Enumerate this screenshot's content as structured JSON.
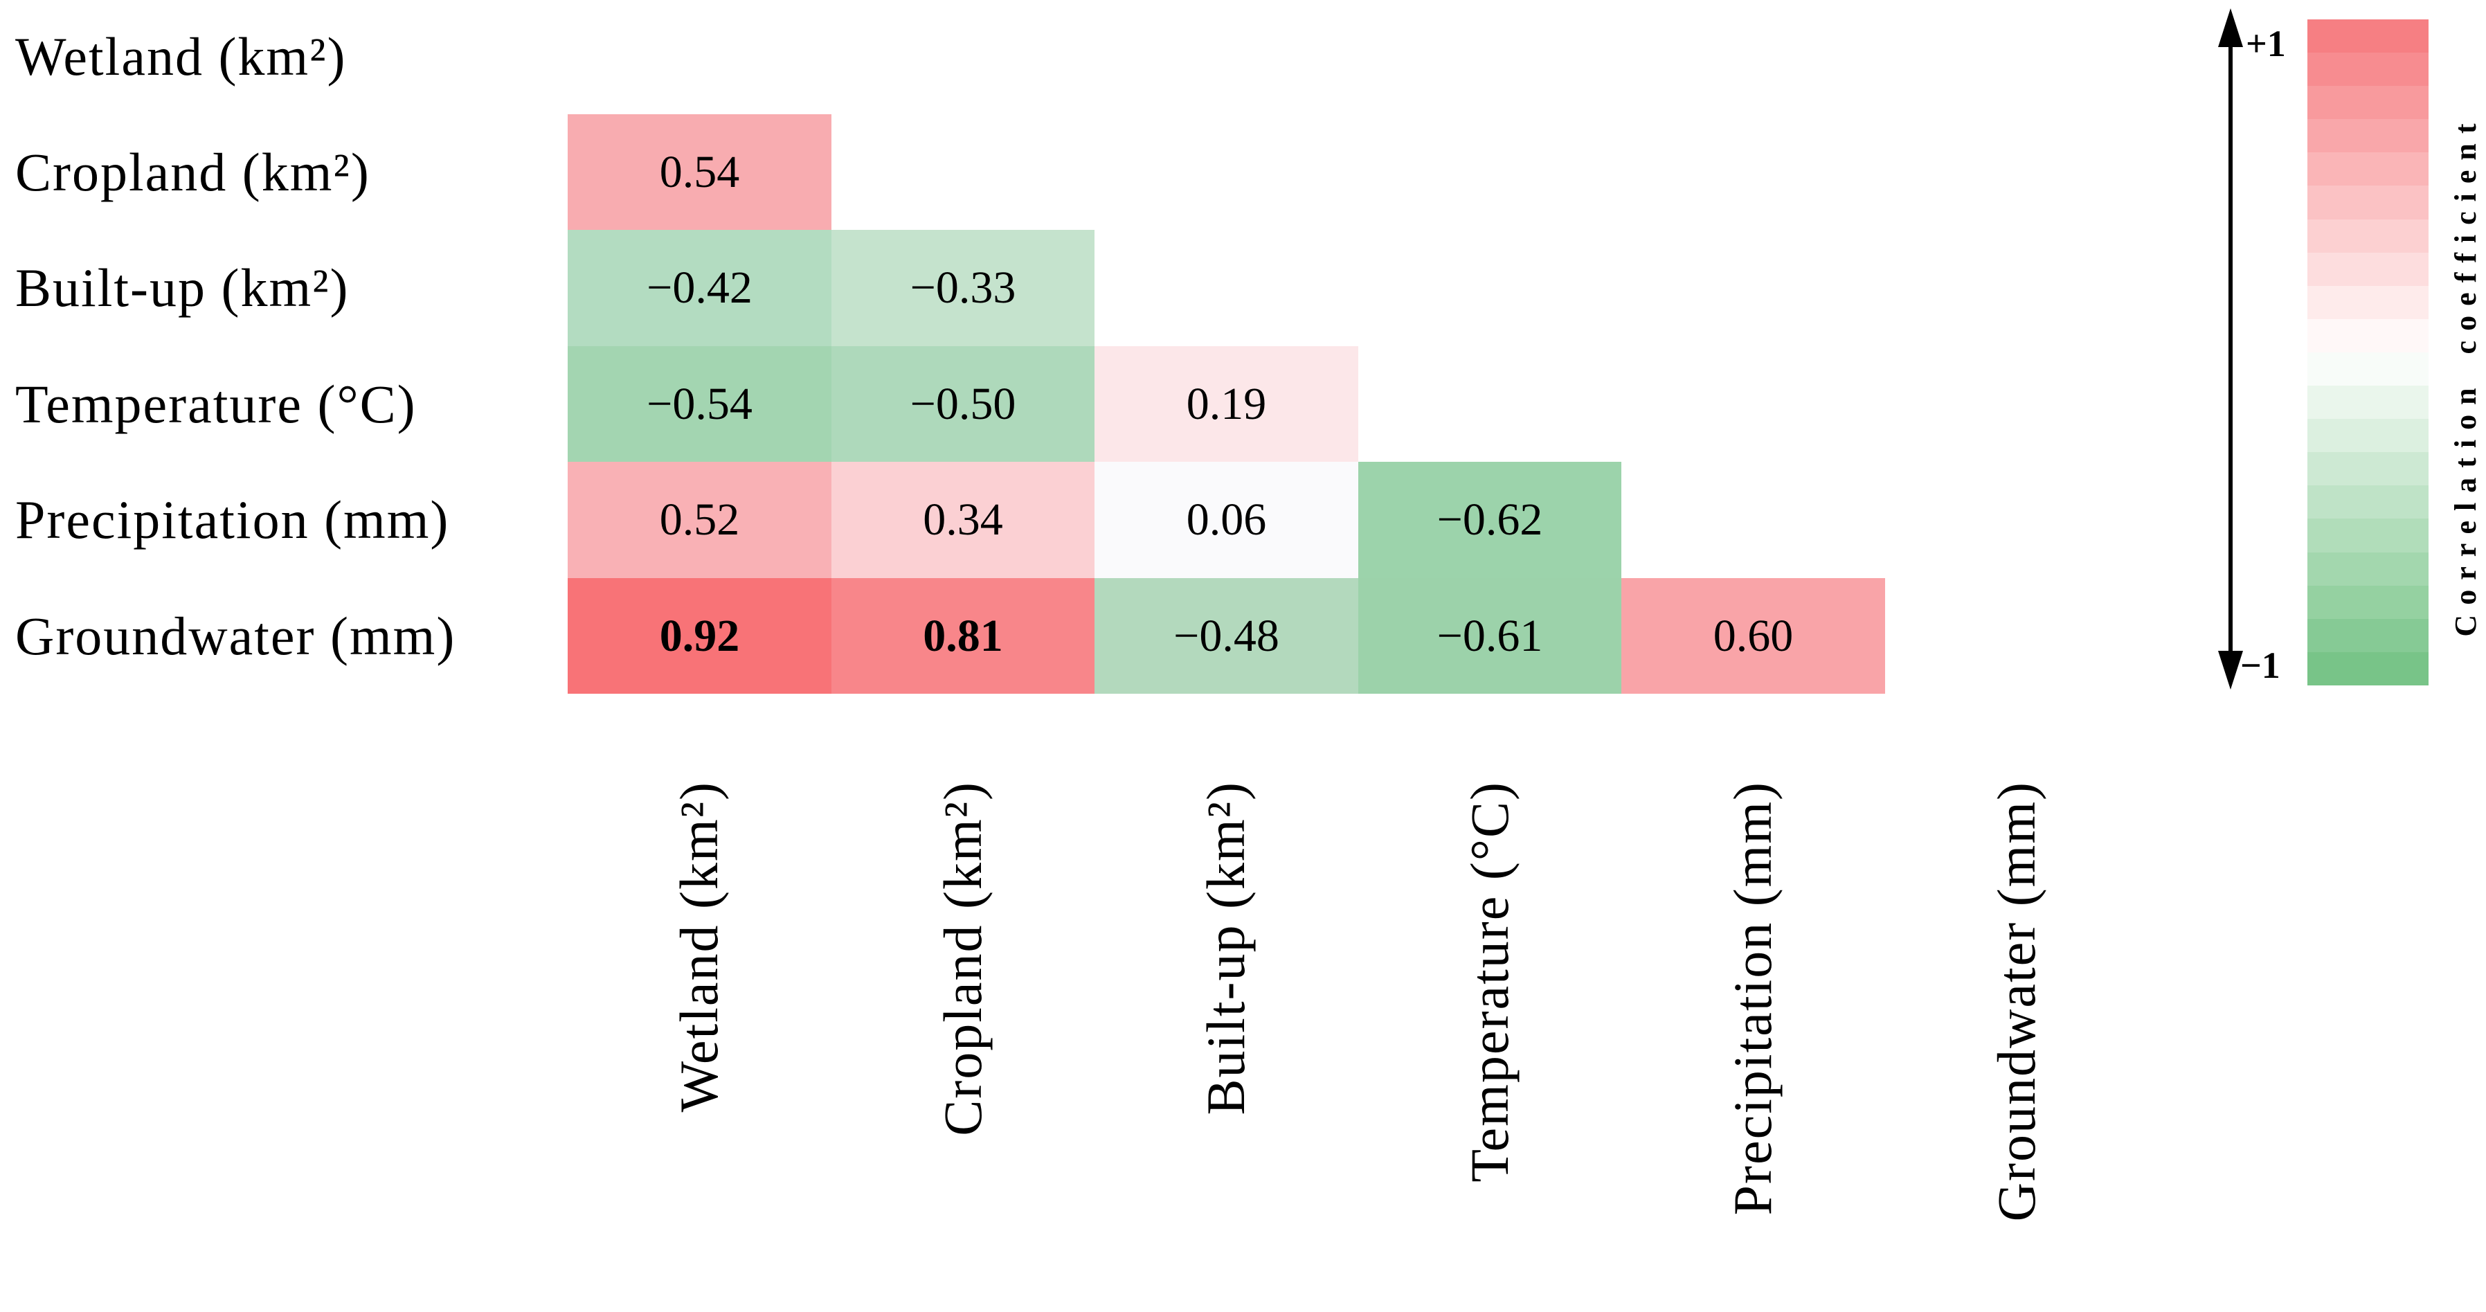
{
  "page": {
    "background": "#ffffff"
  },
  "chart_data": {
    "type": "heatmap",
    "subtype": "correlation-matrix-lower-triangle",
    "title": "",
    "variables": [
      "Wetland (km²)",
      "Cropland (km²)",
      "Built-up (km²)",
      "Temperature (°C)",
      "Precipitation (mm)",
      "Groundwater (mm)"
    ],
    "cells": [
      {
        "row": "Cropland (km²)",
        "col": "Wetland (km²)",
        "r": 1,
        "c": 0,
        "value": 0.54,
        "label": "0.54",
        "bold": false,
        "color": "#f8acb0"
      },
      {
        "row": "Built-up (km²)",
        "col": "Wetland (km²)",
        "r": 2,
        "c": 0,
        "value": -0.42,
        "label": "−0.42",
        "bold": false,
        "color": "#b3dcc1"
      },
      {
        "row": "Built-up (km²)",
        "col": "Cropland (km²)",
        "r": 2,
        "c": 1,
        "value": -0.33,
        "label": "−0.33",
        "bold": false,
        "color": "#c5e3cd"
      },
      {
        "row": "Temperature (°C)",
        "col": "Wetland (km²)",
        "r": 3,
        "c": 0,
        "value": -0.54,
        "label": "−0.54",
        "bold": false,
        "color": "#a3d5b1"
      },
      {
        "row": "Temperature (°C)",
        "col": "Cropland (km²)",
        "r": 3,
        "c": 1,
        "value": -0.5,
        "label": "−0.50",
        "bold": false,
        "color": "#aed9bb"
      },
      {
        "row": "Temperature (°C)",
        "col": "Built-up (km²)",
        "r": 3,
        "c": 2,
        "value": 0.19,
        "label": "0.19",
        "bold": false,
        "color": "#fce7e9"
      },
      {
        "row": "Precipitation (mm)",
        "col": "Wetland (km²)",
        "r": 4,
        "c": 0,
        "value": 0.52,
        "label": "0.52",
        "bold": false,
        "color": "#f9b1b5"
      },
      {
        "row": "Precipitation (mm)",
        "col": "Cropland (km²)",
        "r": 4,
        "c": 1,
        "value": 0.34,
        "label": "0.34",
        "bold": false,
        "color": "#fbd0d3"
      },
      {
        "row": "Precipitation (mm)",
        "col": "Built-up (km²)",
        "r": 4,
        "c": 2,
        "value": 0.06,
        "label": "0.06",
        "bold": false,
        "color": "#fafafc"
      },
      {
        "row": "Precipitation (mm)",
        "col": "Temperature (°C)",
        "r": 4,
        "c": 3,
        "value": -0.62,
        "label": "−0.62",
        "bold": false,
        "color": "#9cd3ab"
      },
      {
        "row": "Groundwater (mm)",
        "col": "Wetland (km²)",
        "r": 5,
        "c": 0,
        "value": 0.92,
        "label": "0.92",
        "bold": true,
        "color": "#f87377"
      },
      {
        "row": "Groundwater (mm)",
        "col": "Cropland (km²)",
        "r": 5,
        "c": 1,
        "value": 0.81,
        "label": "0.81",
        "bold": true,
        "color": "#f8868a"
      },
      {
        "row": "Groundwater (mm)",
        "col": "Built-up (km²)",
        "r": 5,
        "c": 2,
        "value": -0.48,
        "label": "−0.48",
        "bold": false,
        "color": "#b3d9bd"
      },
      {
        "row": "Groundwater (mm)",
        "col": "Temperature (°C)",
        "r": 5,
        "c": 3,
        "value": -0.61,
        "label": "−0.61",
        "bold": false,
        "color": "#9cd2aa"
      },
      {
        "row": "Groundwater (mm)",
        "col": "Precipitation (mm)",
        "r": 5,
        "c": 4,
        "value": 0.6,
        "label": "0.60",
        "bold": false,
        "color": "#f9a4a8"
      }
    ],
    "legend": {
      "title": "Correlation coefficient",
      "top_label": "+1",
      "bottom_label": "−1",
      "steps": 20,
      "color_top": "#f5787c",
      "color_mid": "#ffffff",
      "color_bottom": "#71c182",
      "range": [
        1,
        -1
      ]
    }
  }
}
